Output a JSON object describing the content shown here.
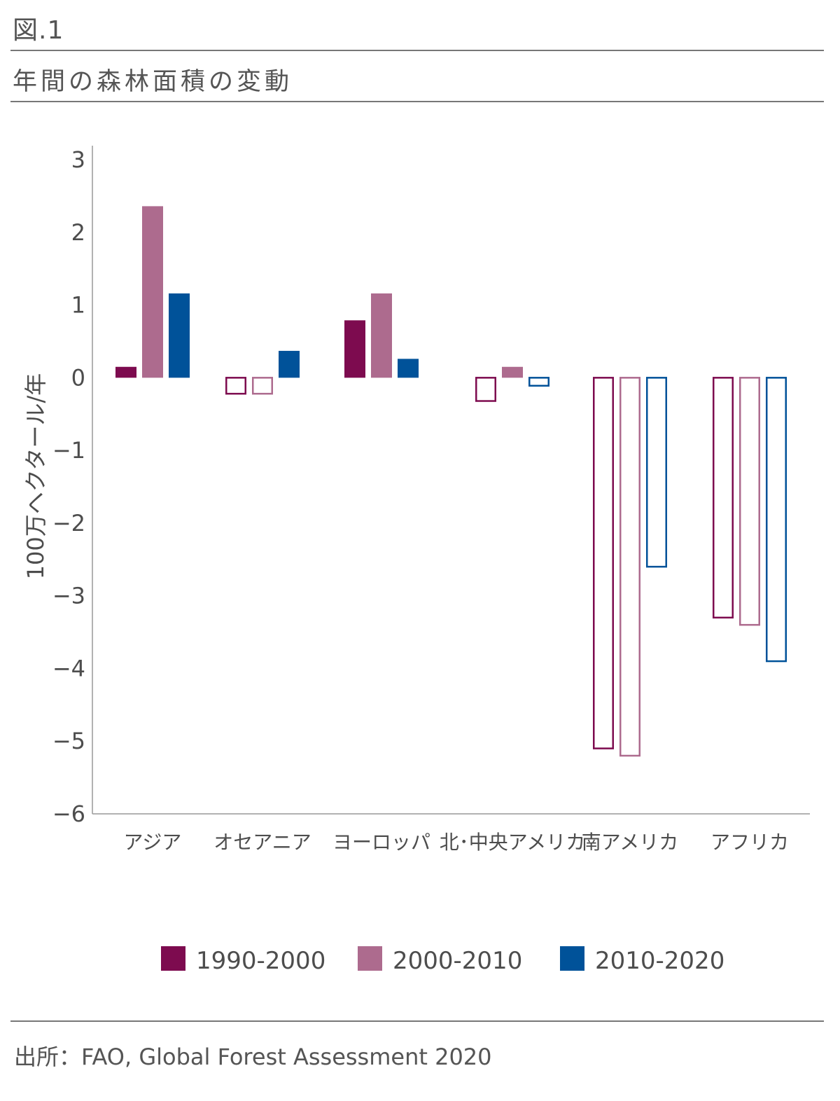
{
  "figure": {
    "label": "図.1",
    "title": "年間の森林面積の変動",
    "source": "出所：FAO, Global Forest Assessment 2020"
  },
  "chart_data": {
    "type": "bar",
    "title": "年間の森林面積の変動",
    "xlabel": "",
    "ylabel": "100万ヘクタール/年",
    "ylim": [
      -6,
      3
    ],
    "yticks": [
      "3",
      "2",
      "1",
      "0",
      "−1",
      "−2",
      "−3",
      "−4",
      "−5",
      "−6"
    ],
    "ytick_values": [
      3,
      2,
      1,
      0,
      -1,
      -2,
      -3,
      -4,
      -5,
      -6
    ],
    "categories": [
      "アジア",
      "オセアニア",
      "ヨーロッパ",
      "北･中央アメリカ",
      "南アメリカ",
      "アフリカ"
    ],
    "series": [
      {
        "name": "1990-2000",
        "color": "#7d0b4f",
        "values": [
          0.15,
          -0.22,
          0.79,
          -0.32,
          -5.1,
          -3.3
        ]
      },
      {
        "name": "2000-2010",
        "color": "#ad6b8e",
        "values": [
          2.36,
          -0.22,
          1.16,
          0.15,
          -5.2,
          -3.4
        ]
      },
      {
        "name": "2010-2020",
        "color": "#005299",
        "values": [
          1.16,
          0.37,
          0.26,
          -0.11,
          -2.6,
          -3.9
        ]
      }
    ],
    "negative_bars_style": "outline",
    "grid": false,
    "legend_position": "bottom"
  }
}
